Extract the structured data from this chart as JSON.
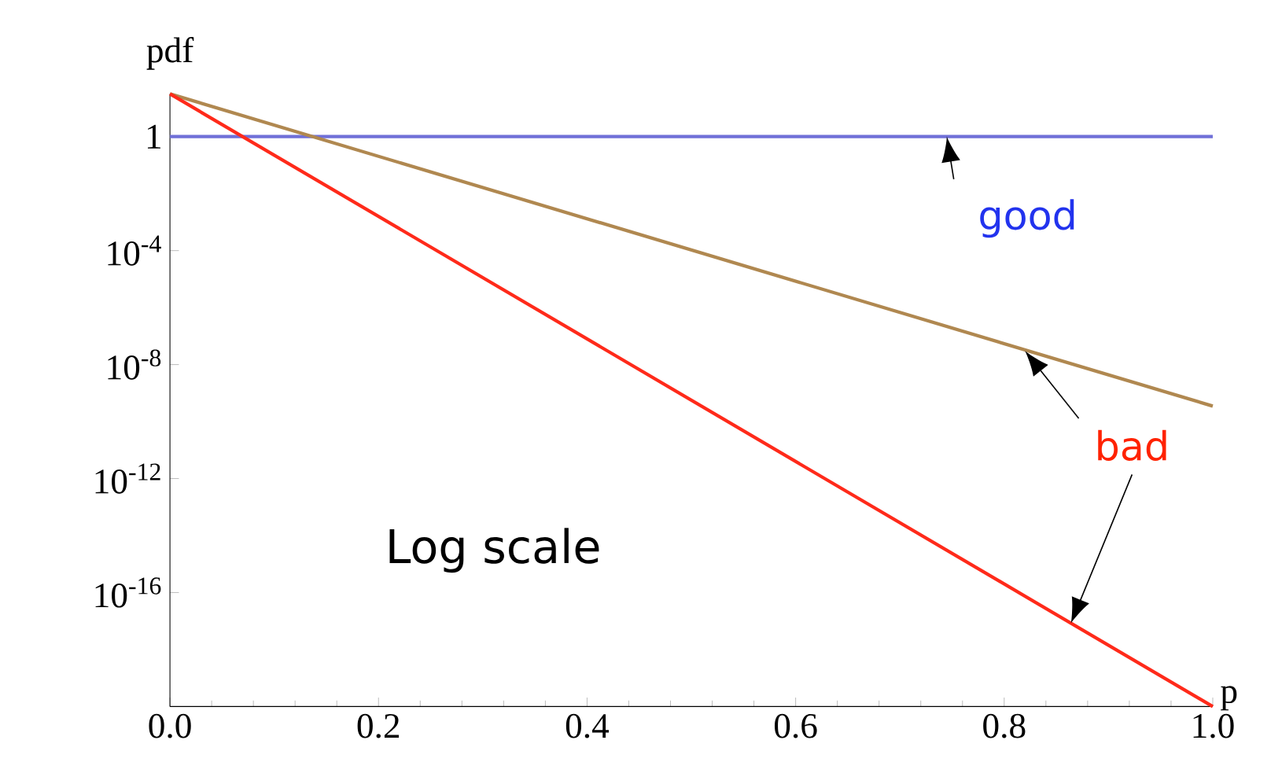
{
  "chart_data": {
    "type": "line",
    "xlabel": "p",
    "ylabel": "pdf",
    "log": "y",
    "xlim": [
      0,
      1
    ],
    "ylim": [
      1e-20,
      31.6
    ],
    "xticks": [
      {
        "value": 0,
        "label": "0.0"
      },
      {
        "value": 0.2,
        "label": "0.2"
      },
      {
        "value": 0.4,
        "label": "0.4"
      },
      {
        "value": 0.6,
        "label": "0.6"
      },
      {
        "value": 0.8,
        "label": "0.8"
      },
      {
        "value": 1,
        "label": "1.0"
      }
    ],
    "yticks": [
      {
        "value": 1,
        "label": "1"
      },
      {
        "value": 0.0001,
        "label": "10$^{-4}$"
      },
      {
        "value": 1e-08,
        "label": "10$^{-8}$"
      },
      {
        "value": 1e-12,
        "label": "10$^{-12}$"
      },
      {
        "value": 1e-16,
        "label": "10$^{-16}$"
      }
    ],
    "x": [
      0,
      1
    ],
    "series": [
      {
        "color": "#7070d8",
        "values": [
          1,
          1
        ]
      },
      {
        "color": "#b08850",
        "values": [
          31.6,
          3.5e-10
        ]
      },
      {
        "color": "#ff2a1a",
        "values": [
          31.6,
          1e-20
        ]
      }
    ],
    "annotations": [
      {
        "text": "good",
        "x": 0.74,
        "y": 1
      },
      {
        "text": "bad",
        "x": 0.82,
        "y": 3e-08
      },
      "Log scale"
    ]
  }
}
